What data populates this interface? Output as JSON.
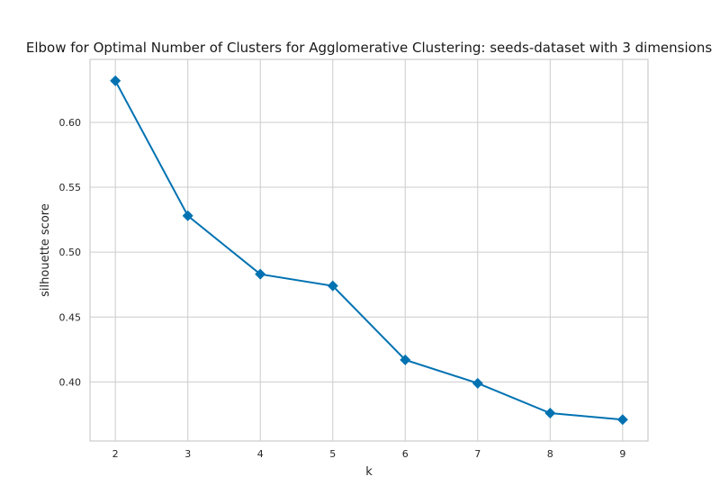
{
  "chart_data": {
    "type": "line",
    "title": "Elbow for Optimal Number of Clusters for Agglomerative Clustering: seeds-dataset with 3 dimensions",
    "xlabel": "k",
    "ylabel": "silhouette score",
    "x": [
      2,
      3,
      4,
      5,
      6,
      7,
      8,
      9
    ],
    "series": [
      {
        "values": [
          0.632,
          0.528,
          0.483,
          0.474,
          0.417,
          0.399,
          0.376,
          0.371
        ]
      }
    ],
    "xlim": [
      1.65,
      9.35
    ],
    "ylim": [
      0.3545,
      0.6485
    ],
    "xticks": [
      2,
      3,
      4,
      5,
      6,
      7,
      8,
      9
    ],
    "xtick_labels": [
      "2",
      "3",
      "4",
      "5",
      "6",
      "7",
      "8",
      "9"
    ],
    "yticks": [
      0.4,
      0.45,
      0.5,
      0.55,
      0.6
    ],
    "ytick_labels": [
      "0.40",
      "0.45",
      "0.50",
      "0.55",
      "0.60"
    ],
    "grid": true,
    "marker": "diamond",
    "line_color": "#0072b2"
  }
}
